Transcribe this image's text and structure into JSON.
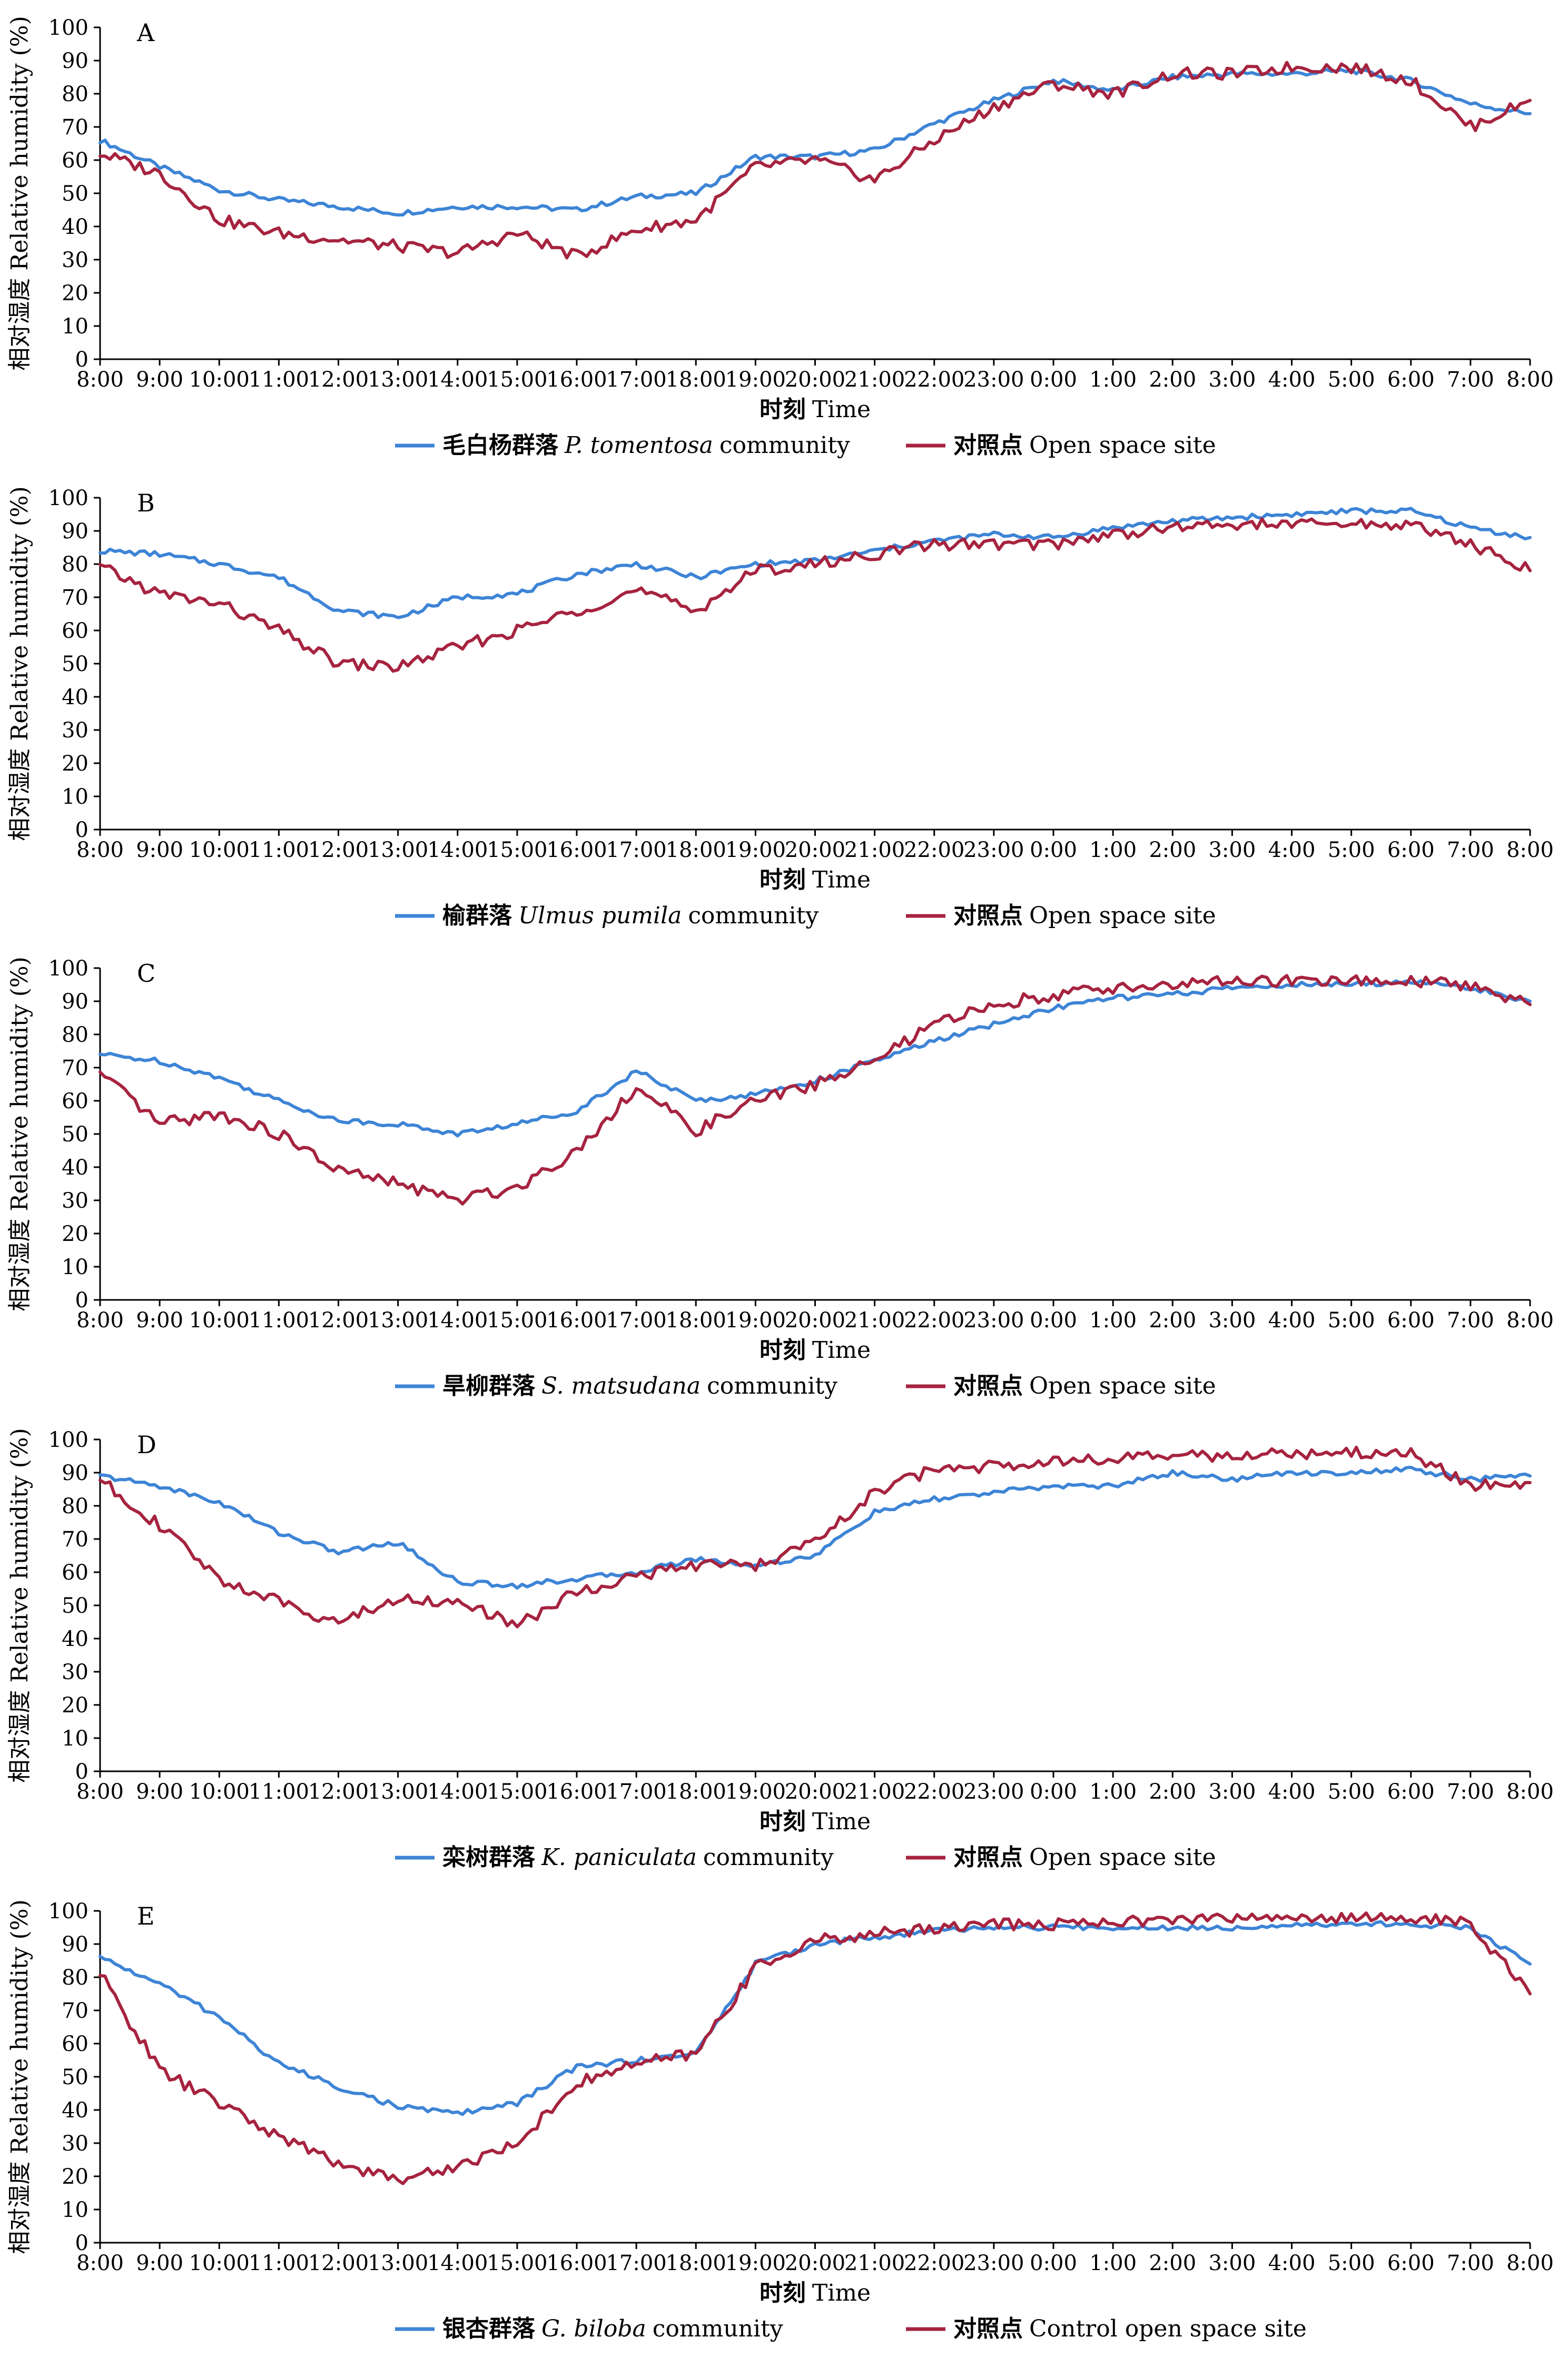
{
  "colors": {
    "community": "#3d84d6",
    "control": "#a6233f"
  },
  "chart_data": [
    {
      "type": "line",
      "panel": "A",
      "title": "",
      "ylabel": "相对湿度 Relative humidity (%)",
      "xlabel": {
        "zh": "时刻",
        "en": "Time"
      },
      "ylim": [
        0,
        100
      ],
      "yticks": [
        "0",
        "10",
        "20",
        "30",
        "40",
        "50",
        "60",
        "70",
        "80",
        "90",
        "100"
      ],
      "categories": [
        "8:00",
        "9:00",
        "10:00",
        "11:00",
        "12:00",
        "13:00",
        "14:00",
        "15:00",
        "16:00",
        "17:00",
        "18:00",
        "19:00",
        "20:00",
        "21:00",
        "22:00",
        "23:00",
        "0:00",
        "1:00",
        "2:00",
        "3:00",
        "4:00",
        "5:00",
        "6:00",
        "7:00",
        "8:00"
      ],
      "series": [
        {
          "name": "毛白杨群落 P. tomentosa community",
          "legend_zh": "毛白杨群落",
          "legend_species": "P. tomentosa",
          "legend_en": "community",
          "color": "#3d84d6",
          "values": [
            66,
            58,
            51,
            48,
            46,
            44,
            46,
            46,
            45,
            49,
            50,
            61,
            61,
            63,
            71,
            78,
            84,
            81,
            85,
            86,
            86,
            87,
            84,
            77,
            74
          ]
        },
        {
          "name": "对照点 Open space site",
          "legend_zh": "对照点",
          "legend_species": "",
          "legend_en": "Open space site",
          "color": "#a6233f",
          "values": [
            62,
            56,
            42,
            38,
            36,
            34,
            32,
            38,
            31,
            39,
            42,
            58,
            60,
            54,
            66,
            76,
            83,
            80,
            86,
            86,
            88,
            88,
            84,
            70,
            78
          ]
        }
      ]
    },
    {
      "type": "line",
      "panel": "B",
      "title": "",
      "ylabel": "相对湿度 Relative humidity (%)",
      "xlabel": {
        "zh": "时刻",
        "en": "Time"
      },
      "ylim": [
        0,
        100
      ],
      "yticks": [
        "0",
        "10",
        "20",
        "30",
        "40",
        "50",
        "60",
        "70",
        "80",
        "90",
        "100"
      ],
      "categories": [
        "8:00",
        "9:00",
        "10:00",
        "11:00",
        "12:00",
        "13:00",
        "14:00",
        "15:00",
        "16:00",
        "17:00",
        "18:00",
        "19:00",
        "20:00",
        "21:00",
        "22:00",
        "23:00",
        "0:00",
        "1:00",
        "2:00",
        "3:00",
        "4:00",
        "5:00",
        "6:00",
        "7:00",
        "8:00"
      ],
      "series": [
        {
          "name": "榆群落 Ulmus pumila community",
          "legend_zh": "榆群落",
          "legend_species": "Ulmus pumila",
          "legend_en": "community",
          "color": "#3d84d6",
          "values": [
            84,
            83,
            80,
            76,
            66,
            64,
            70,
            71,
            77,
            80,
            76,
            80,
            81,
            84,
            87,
            89,
            88,
            91,
            93,
            94,
            95,
            96,
            96,
            91,
            88
          ]
        },
        {
          "name": "对照点 Open space site",
          "legend_zh": "对照点",
          "legend_species": "",
          "legend_en": "Open space site",
          "color": "#a6233f",
          "values": [
            79,
            71,
            68,
            60,
            50,
            49,
            55,
            60,
            66,
            72,
            66,
            78,
            80,
            83,
            86,
            86,
            86,
            89,
            91,
            92,
            92,
            92,
            92,
            86,
            78
          ]
        }
      ]
    },
    {
      "type": "line",
      "panel": "C",
      "title": "",
      "ylabel": "相对湿度 Relative humidity (%)",
      "xlabel": {
        "zh": "时刻",
        "en": "Time"
      },
      "ylim": [
        0,
        100
      ],
      "yticks": [
        "0",
        "10",
        "20",
        "30",
        "40",
        "50",
        "60",
        "70",
        "80",
        "90",
        "100"
      ],
      "categories": [
        "8:00",
        "9:00",
        "10:00",
        "11:00",
        "12:00",
        "13:00",
        "14:00",
        "15:00",
        "16:00",
        "17:00",
        "18:00",
        "19:00",
        "20:00",
        "21:00",
        "22:00",
        "23:00",
        "0:00",
        "1:00",
        "2:00",
        "3:00",
        "4:00",
        "5:00",
        "6:00",
        "7:00",
        "8:00"
      ],
      "series": [
        {
          "name": "旱柳群落 S. matsudana community",
          "legend_zh": "旱柳群落",
          "legend_species": "S. matsudana",
          "legend_en": "community",
          "color": "#3d84d6",
          "values": [
            74,
            72,
            67,
            60,
            54,
            53,
            50,
            53,
            57,
            69,
            60,
            62,
            66,
            72,
            78,
            83,
            88,
            91,
            92,
            94,
            95,
            95,
            96,
            94,
            90
          ]
        },
        {
          "name": "对照点 Open space site",
          "legend_zh": "对照点",
          "legend_species": "",
          "legend_en": "Open space site",
          "color": "#a6233f",
          "values": [
            68,
            53,
            56,
            50,
            39,
            35,
            30,
            34,
            45,
            64,
            51,
            60,
            65,
            72,
            83,
            89,
            92,
            94,
            95,
            96,
            96,
            96,
            96,
            95,
            89
          ]
        }
      ]
    },
    {
      "type": "line",
      "panel": "D",
      "title": "",
      "ylabel": "相对湿度 Relative humidity (%)",
      "xlabel": {
        "zh": "时刻",
        "en": "Time"
      },
      "ylim": [
        0,
        100
      ],
      "yticks": [
        "0",
        "10",
        "20",
        "30",
        "40",
        "50",
        "60",
        "70",
        "80",
        "90",
        "100"
      ],
      "categories": [
        "8:00",
        "9:00",
        "10:00",
        "11:00",
        "12:00",
        "13:00",
        "14:00",
        "15:00",
        "16:00",
        "17:00",
        "18:00",
        "19:00",
        "20:00",
        "21:00",
        "22:00",
        "23:00",
        "0:00",
        "1:00",
        "2:00",
        "3:00",
        "4:00",
        "5:00",
        "6:00",
        "7:00",
        "8:00"
      ],
      "series": [
        {
          "name": "栾树群落 K. paniculata community",
          "legend_zh": "栾树群落",
          "legend_species": "K. paniculata",
          "legend_en": "community",
          "color": "#3d84d6",
          "values": [
            89,
            86,
            81,
            72,
            66,
            69,
            57,
            56,
            58,
            60,
            64,
            62,
            65,
            78,
            82,
            84,
            86,
            86,
            90,
            88,
            90,
            90,
            91,
            88,
            89
          ]
        },
        {
          "name": "对照点 Open space site",
          "legend_zh": "对照点",
          "legend_species": "",
          "legend_en": "Open space site",
          "color": "#a6233f",
          "values": [
            88,
            74,
            58,
            51,
            45,
            52,
            51,
            44,
            54,
            59,
            62,
            62,
            69,
            84,
            91,
            92,
            94,
            94,
            95,
            95,
            96,
            96,
            96,
            86,
            87
          ]
        }
      ]
    },
    {
      "type": "line",
      "panel": "E",
      "title": "",
      "ylabel": "相对湿度 Relative humidity (%)",
      "xlabel": {
        "zh": "时刻",
        "en": "Time"
      },
      "ylim": [
        0,
        100
      ],
      "yticks": [
        "0",
        "10",
        "20",
        "30",
        "40",
        "50",
        "60",
        "70",
        "80",
        "90",
        "100"
      ],
      "categories": [
        "8:00",
        "9:00",
        "10:00",
        "11:00",
        "12:00",
        "13:00",
        "14:00",
        "15:00",
        "16:00",
        "17:00",
        "18:00",
        "19:00",
        "20:00",
        "21:00",
        "22:00",
        "23:00",
        "0:00",
        "1:00",
        "2:00",
        "3:00",
        "4:00",
        "5:00",
        "6:00",
        "7:00",
        "8:00"
      ],
      "series": [
        {
          "name": "银杏群落 G. biloba community",
          "legend_zh": "银杏群落",
          "legend_species": "G. biloba",
          "legend_en": "community",
          "color": "#3d84d6",
          "values": [
            86,
            78,
            68,
            54,
            47,
            41,
            39,
            42,
            53,
            55,
            57,
            84,
            90,
            92,
            94,
            95,
            95,
            95,
            95,
            95,
            96,
            96,
            96,
            95,
            84
          ]
        },
        {
          "name": "对照点 Control open space site",
          "legend_zh": "对照点",
          "legend_species": "",
          "legend_en": "Control open space site",
          "color": "#a6233f",
          "values": [
            81,
            52,
            42,
            32,
            24,
            19,
            23,
            30,
            48,
            54,
            57,
            83,
            91,
            93,
            95,
            96,
            96,
            97,
            97,
            98,
            98,
            98,
            98,
            96,
            75
          ]
        }
      ]
    }
  ]
}
